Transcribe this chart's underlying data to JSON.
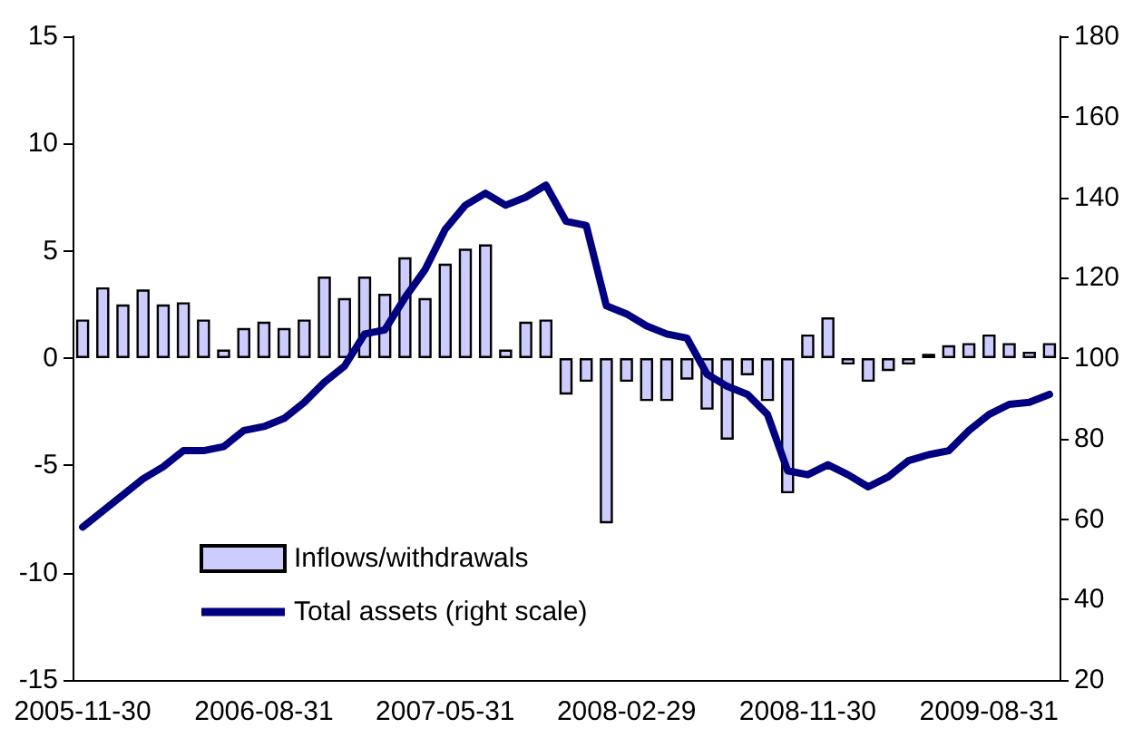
{
  "chart_data": {
    "type": "bar",
    "categories": [
      "2005-11-30",
      null,
      null,
      null,
      null,
      null,
      null,
      null,
      null,
      "2006-08-31",
      null,
      null,
      null,
      null,
      null,
      null,
      null,
      null,
      "2007-05-31",
      null,
      null,
      null,
      null,
      null,
      null,
      null,
      null,
      "2008-02-29",
      null,
      null,
      null,
      null,
      null,
      null,
      null,
      null,
      "2008-11-30",
      null,
      null,
      null,
      null,
      null,
      null,
      null,
      null,
      "2009-08-31",
      null,
      null,
      null
    ],
    "series": [
      {
        "name": "Inflows/withdrawals",
        "color": "#ccccff",
        "values": [
          1.8,
          3.3,
          2.5,
          3.2,
          2.5,
          2.6,
          1.8,
          0.4,
          1.4,
          1.7,
          1.4,
          1.8,
          3.8,
          2.8,
          3.8,
          3.0,
          4.7,
          2.8,
          4.4,
          5.1,
          5.3,
          0.4,
          1.7,
          1.8,
          -1.7,
          -1.1,
          -7.7,
          -1.1,
          -2.0,
          -2.0,
          -1.0,
          -2.4,
          -3.8,
          -0.8,
          -2.0,
          -6.3,
          1.1,
          1.9,
          -0.3,
          -1.1,
          -0.6,
          -0.3,
          0.2,
          0.6,
          0.7,
          1.1,
          0.7,
          0.3,
          0.7
        ]
      },
      {
        "name": "Total assets (right scale)",
        "type": "line",
        "axis": "y2",
        "color": "#000080",
        "values": [
          58,
          62,
          66,
          70,
          73,
          77,
          77,
          78,
          82,
          83,
          85,
          89,
          94,
          98,
          106,
          107,
          115,
          122,
          132,
          138,
          141,
          138,
          140,
          143,
          134,
          133,
          113,
          111,
          108,
          106,
          105,
          96,
          93,
          91,
          86,
          72,
          71,
          73.5,
          71,
          68,
          70.5,
          74.5,
          76,
          77,
          82,
          86,
          88.5,
          89,
          91
        ]
      }
    ],
    "ylim": [
      -15,
      15
    ],
    "yticks": [
      -15,
      -10,
      -5,
      0,
      5,
      10,
      15
    ],
    "y2lim": [
      20,
      180
    ],
    "y2ticks": [
      20,
      40,
      60,
      80,
      100,
      120,
      140,
      160,
      180
    ],
    "legend": "bottom left",
    "grid": false,
    "marker": "none",
    "line_style": "solid"
  }
}
